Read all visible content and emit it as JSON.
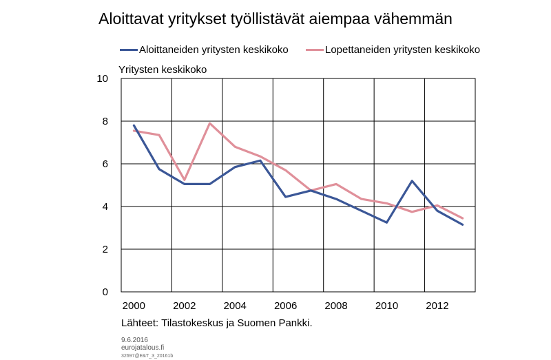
{
  "title": "Aloittavat yritykset työllistävät aiempaa vähemmän",
  "source_note": "Lähteet: Tilastokeskus ja Suomen Pankki.",
  "date": "9.6.2016",
  "site": "eurojatalous.fi",
  "code": "32697@E&T_3_20161b",
  "colors": {
    "series1": "#3b5797",
    "series2": "#e0909a",
    "grid": "#000000"
  },
  "chart_data": {
    "type": "line",
    "title": "Aloittavat yritykset työllistävät aiempaa vähemmän",
    "ylabel": "Yritysten keskikoko",
    "xlabel": "",
    "ylim": [
      0,
      10
    ],
    "xlim": [
      1999.5,
      2013.5
    ],
    "yticks": [
      "0",
      "2",
      "4",
      "6",
      "8",
      "10"
    ],
    "xticks": [
      "2000",
      "2002",
      "2004",
      "2006",
      "2008",
      "2010",
      "2012"
    ],
    "grid": true,
    "legend_position": "top",
    "x": [
      2000,
      2001,
      2002,
      2003,
      2004,
      2005,
      2006,
      2007,
      2008,
      2009,
      2010,
      2011,
      2012,
      2013
    ],
    "series": [
      {
        "name": "Aloittaneiden yritysten keskikoko",
        "values": [
          7.8,
          5.75,
          5.05,
          5.05,
          5.85,
          6.15,
          4.45,
          4.75,
          4.35,
          3.8,
          3.25,
          5.2,
          3.8,
          3.15
        ]
      },
      {
        "name": "Lopettaneiden yritysten keskikoko",
        "values": [
          7.55,
          7.35,
          5.25,
          7.9,
          6.8,
          6.35,
          5.7,
          4.75,
          5.05,
          4.35,
          4.15,
          3.75,
          4.05,
          3.45
        ]
      }
    ]
  }
}
